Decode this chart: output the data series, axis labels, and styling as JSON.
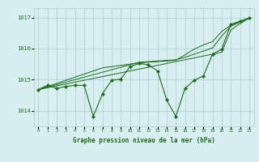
{
  "xlabel": "Graphe pression niveau de la mer (hPa)",
  "x": [
    0,
    1,
    2,
    3,
    4,
    5,
    6,
    7,
    8,
    9,
    10,
    11,
    12,
    13,
    14,
    15,
    16,
    17,
    18,
    19,
    20,
    21,
    22,
    23
  ],
  "y_main": [
    1014.68,
    1014.82,
    1014.72,
    1014.78,
    1014.82,
    1014.82,
    1013.82,
    1014.55,
    1014.98,
    1015.02,
    1015.42,
    1015.52,
    1015.48,
    1015.28,
    1014.35,
    1013.82,
    1014.72,
    1014.98,
    1015.12,
    1015.82,
    1015.98,
    1016.78,
    1016.88,
    1016.98
  ],
  "y_line1": [
    1014.68,
    1014.74,
    1014.8,
    1014.86,
    1014.92,
    1014.98,
    1015.04,
    1015.1,
    1015.16,
    1015.22,
    1015.28,
    1015.34,
    1015.4,
    1015.46,
    1015.52,
    1015.58,
    1015.64,
    1015.7,
    1015.76,
    1015.82,
    1015.88,
    1016.6,
    1016.8,
    1016.98
  ],
  "y_line2": [
    1014.68,
    1014.76,
    1014.84,
    1014.92,
    1015.0,
    1015.08,
    1015.16,
    1015.24,
    1015.32,
    1015.4,
    1015.48,
    1015.56,
    1015.58,
    1015.6,
    1015.62,
    1015.64,
    1015.72,
    1015.82,
    1015.92,
    1016.02,
    1016.4,
    1016.72,
    1016.85,
    1016.98
  ],
  "y_line3": [
    1014.68,
    1014.78,
    1014.88,
    1014.98,
    1015.08,
    1015.18,
    1015.28,
    1015.38,
    1015.42,
    1015.46,
    1015.5,
    1015.54,
    1015.56,
    1015.58,
    1015.6,
    1015.62,
    1015.8,
    1015.98,
    1016.12,
    1016.22,
    1016.55,
    1016.75,
    1016.87,
    1016.98
  ],
  "bg_color": "#d8eef0",
  "grid_color": "#aacccc",
  "line_color": "#1a6b1a",
  "marker_color": "#1a6b1a",
  "text_color": "#1a6b1a",
  "ylim_min": 1013.5,
  "ylim_max": 1017.3,
  "yticks": [
    1014,
    1015,
    1016,
    1017
  ],
  "xlim_min": -0.5,
  "xlim_max": 23.5,
  "figwidth": 3.2,
  "figheight": 2.0,
  "dpi": 100
}
